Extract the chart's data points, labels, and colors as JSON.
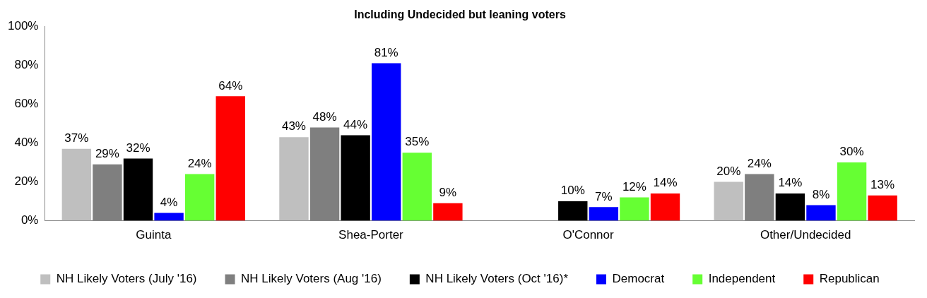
{
  "chart_data": {
    "type": "bar",
    "title": "Including Undecided but leaning voters",
    "categories": [
      "Guinta",
      "Shea-Porter",
      "O'Connor",
      "Other/Undecided"
    ],
    "series": [
      {
        "name": "NH Likely Voters (July '16)",
        "color": "#bfbfbf",
        "values": [
          37,
          43,
          null,
          20
        ],
        "value_labels": [
          "37%",
          "43%",
          null,
          "20%"
        ]
      },
      {
        "name": "NH Likely Voters (Aug '16)",
        "color": "#7f7f7f",
        "values": [
          29,
          48,
          null,
          24
        ],
        "value_labels": [
          "29%",
          "48%",
          null,
          "24%"
        ]
      },
      {
        "name": "NH Likely Voters (Oct '16)*",
        "color": "#000000",
        "values": [
          32,
          44,
          10,
          14
        ],
        "value_labels": [
          "32%",
          "44%",
          "10%",
          "14%"
        ]
      },
      {
        "name": "Democrat",
        "color": "#0000ff",
        "values": [
          4,
          81,
          7,
          8
        ],
        "value_labels": [
          "4%",
          "81%",
          "7%",
          "8%"
        ]
      },
      {
        "name": "Independent",
        "color": "#66ff33",
        "values": [
          24,
          35,
          12,
          30
        ],
        "value_labels": [
          "24%",
          "35%",
          "12%",
          "30%"
        ]
      },
      {
        "name": "Republican",
        "color": "#ff0000",
        "values": [
          64,
          9,
          14,
          13
        ],
        "value_labels": [
          "64%",
          "9%",
          "14%",
          "13%"
        ]
      }
    ],
    "ylim": [
      0,
      100
    ],
    "yticks": [
      {
        "value": 0,
        "label": "0%"
      },
      {
        "value": 20,
        "label": "20%"
      },
      {
        "value": 40,
        "label": "40%"
      },
      {
        "value": 60,
        "label": "60%"
      },
      {
        "value": 80,
        "label": "80%"
      },
      {
        "value": 100,
        "label": "100%"
      }
    ],
    "legend": "bottom",
    "grid": false
  }
}
